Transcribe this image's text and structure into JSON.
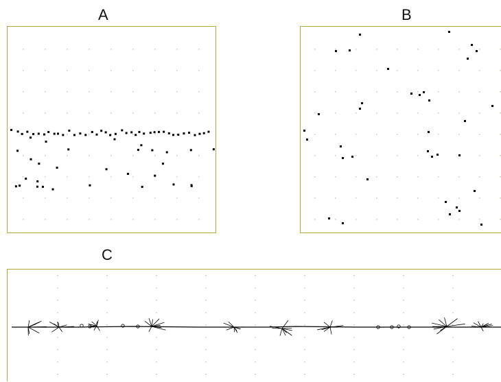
{
  "panels": {
    "a": {
      "label": "A",
      "points": 62
    },
    "b": {
      "label": "B",
      "points": 48
    },
    "c": {
      "label": "C"
    }
  },
  "colors": {
    "frame": "#b8a838",
    "grid_dot": "#c8c8a0",
    "mark": "#000000"
  }
}
